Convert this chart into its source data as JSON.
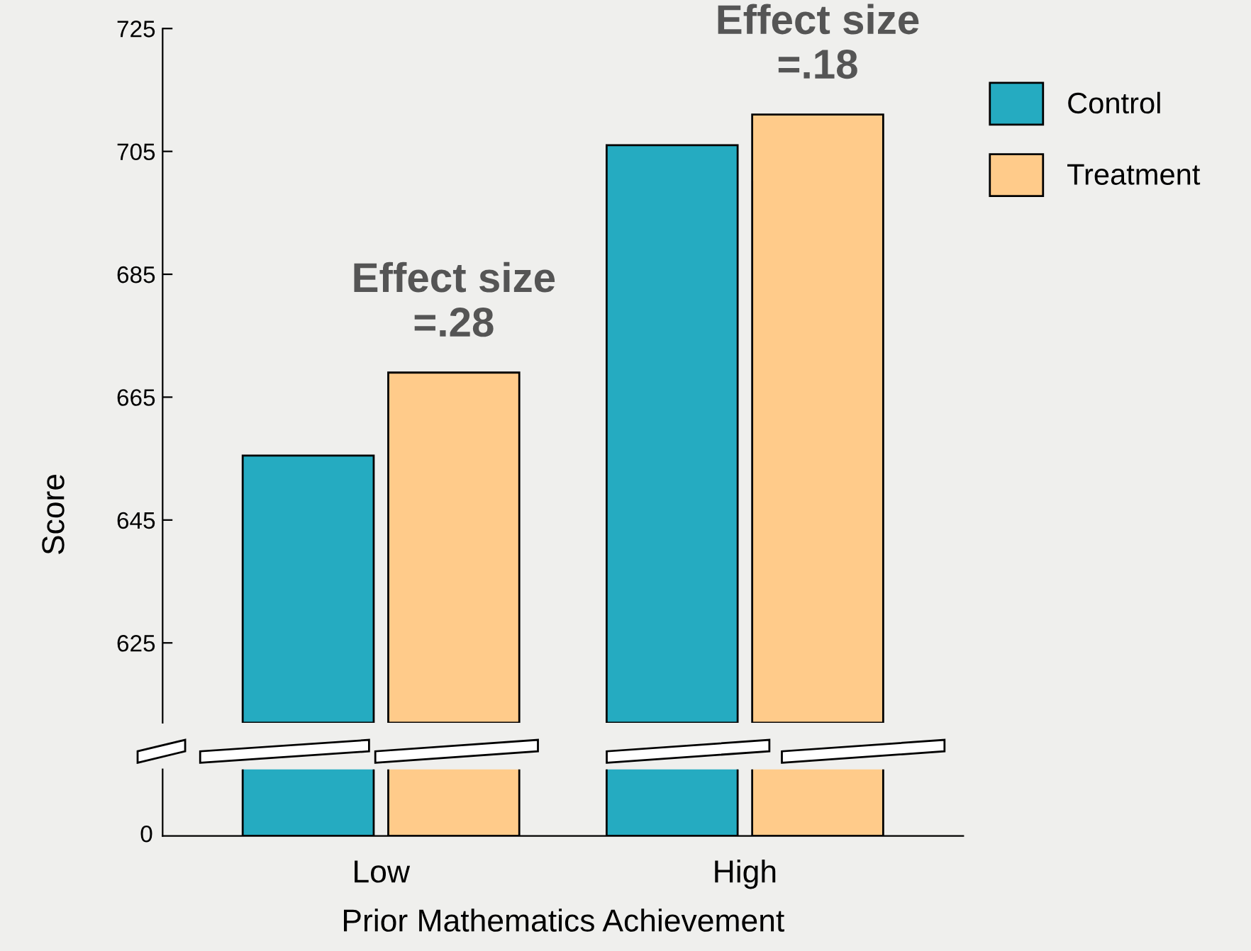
{
  "chart_data": {
    "type": "bar",
    "ylabel": "Score",
    "xlabel": "Prior Mathematics Achievement",
    "categories": [
      "Low",
      "High"
    ],
    "series": [
      {
        "name": "Control",
        "color": "#25abc1",
        "values": [
          655.5,
          706
        ]
      },
      {
        "name": "Treatment",
        "color": "#ffcb8a",
        "values": [
          669,
          711
        ]
      }
    ],
    "annotations": [
      "Effect size\n=.28",
      "Effect size\n=.18",
      "0"
    ],
    "ylim": [
      612,
      725
    ],
    "yticks": [
      625,
      645,
      665,
      685,
      705,
      725
    ],
    "legend": "right",
    "grid": false
  }
}
